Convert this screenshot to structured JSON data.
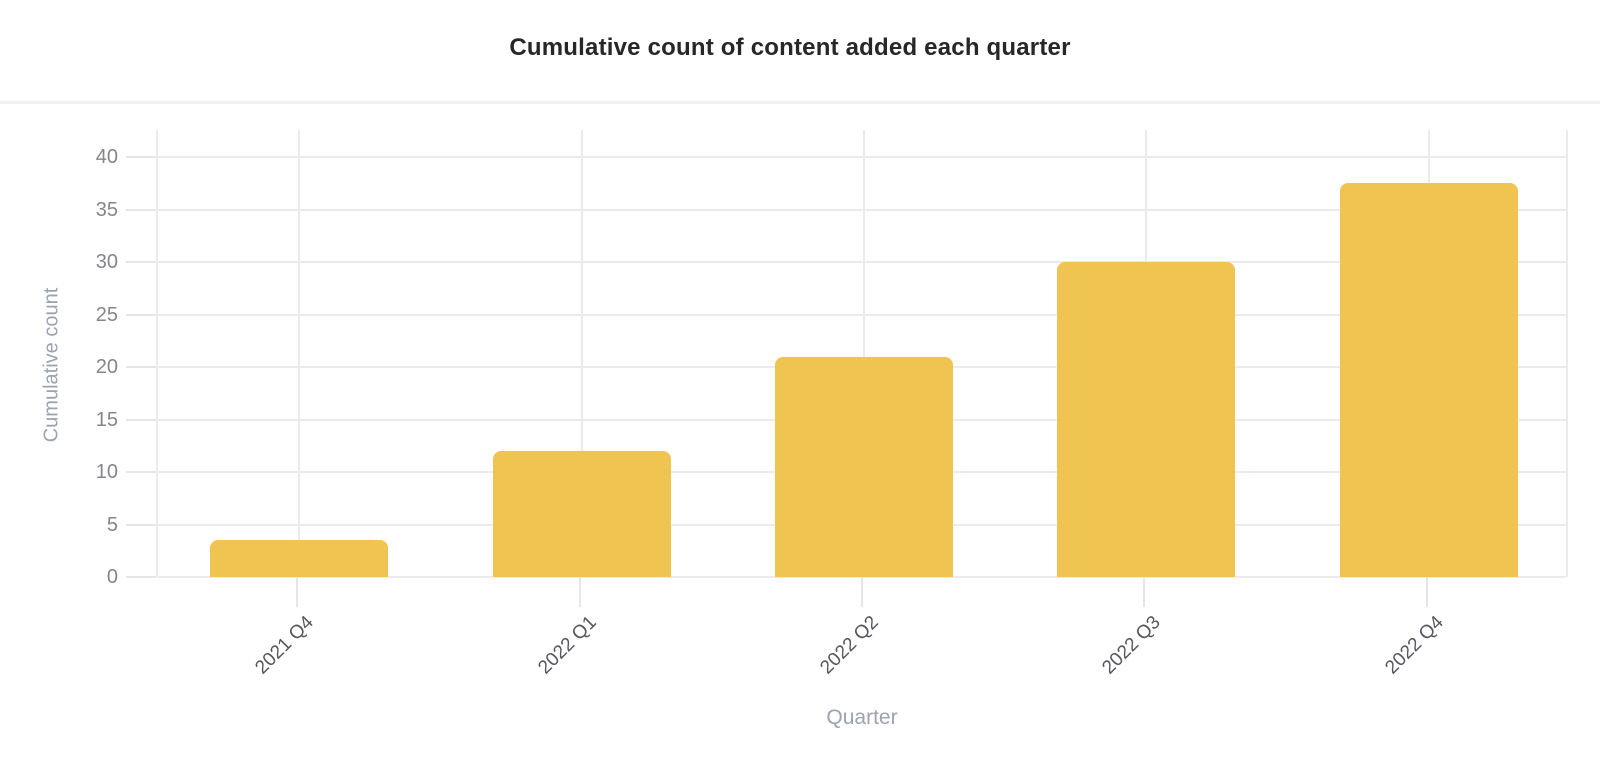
{
  "chart_data": {
    "type": "bar",
    "title": "Cumulative count of content added each quarter",
    "xlabel": "Quarter",
    "ylabel": "Cumulative count",
    "categories": [
      "2021 Q4",
      "2022 Q1",
      "2022 Q2",
      "2022 Q3",
      "2022 Q4"
    ],
    "values": [
      3.5,
      12,
      21,
      30,
      37.5
    ],
    "ylim": [
      0,
      40
    ],
    "ytick_step": 5,
    "yticks": [
      0,
      5,
      10,
      15,
      20,
      25,
      30,
      35,
      40
    ],
    "grid": true,
    "legend": "none",
    "bar_color": "#EFC450"
  },
  "colors": {
    "bar": "#EFC450",
    "gridline": "#ebebee",
    "tick_mark": "#e6e6ea",
    "title_text": "#27272a",
    "y_tick_label": "#85858c",
    "x_tick_label": "#57575e",
    "axis_title": "#9ca3af",
    "separator": "#f0f0f2",
    "background": "#ffffff"
  }
}
